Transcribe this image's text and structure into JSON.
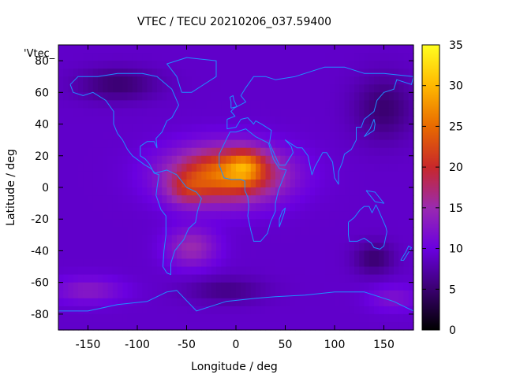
{
  "chart_data": {
    "type": "heatmap",
    "title": "VTEC / TECU 20210206_037.59400",
    "xlabel": "Longitude / deg",
    "ylabel": "Latitude / deg",
    "xlim": [
      -180,
      180
    ],
    "ylim": [
      -90,
      90
    ],
    "x_ticks": [
      -150,
      -100,
      -50,
      0,
      50,
      100,
      150
    ],
    "y_ticks": [
      -80,
      -60,
      -40,
      -20,
      0,
      20,
      40,
      60,
      80
    ],
    "colorbar": {
      "range": [
        0,
        35
      ],
      "ticks": [
        0,
        5,
        10,
        15,
        20,
        25,
        30,
        35
      ],
      "palette": [
        "#000000",
        "#3a0070",
        "#6a00e0",
        "#9a2ab0",
        "#c8282a",
        "#e86a00",
        "#ffb800",
        "#ffff20"
      ]
    },
    "legend_key": "'Vtec_",
    "overlay": "coastlines",
    "coastline_color": "#1e8fff",
    "grid": false,
    "approx_field": {
      "background_tecu": 9,
      "anomalies": [
        {
          "lon": -10,
          "lat": 8,
          "sigma_lon": 55,
          "sigma_lat": 17,
          "tecu": 17
        },
        {
          "lon": 10,
          "lat": 14,
          "sigma_lon": 18,
          "sigma_lat": 10,
          "tecu": 7
        },
        {
          "lon": -50,
          "lat": -2,
          "sigma_lon": 20,
          "sigma_lat": 10,
          "tecu": 5
        },
        {
          "lon": -45,
          "lat": -38,
          "sigma_lon": 25,
          "sigma_lat": 12,
          "tecu": 6
        },
        {
          "lon": -150,
          "lat": -65,
          "sigma_lon": 35,
          "sigma_lat": 8,
          "tecu": 4
        },
        {
          "lon": 160,
          "lat": -70,
          "sigma_lon": 25,
          "sigma_lat": 8,
          "tecu": 3
        },
        {
          "lon": -120,
          "lat": 65,
          "sigma_lon": 40,
          "sigma_lat": 10,
          "tecu": -4
        },
        {
          "lon": 150,
          "lat": 50,
          "sigma_lon": 30,
          "sigma_lat": 20,
          "tecu": -4
        },
        {
          "lon": 140,
          "lat": -45,
          "sigma_lon": 20,
          "sigma_lat": 10,
          "tecu": -4
        },
        {
          "lon": -10,
          "lat": -65,
          "sigma_lon": 40,
          "sigma_lat": 8,
          "tecu": -3
        }
      ]
    }
  }
}
